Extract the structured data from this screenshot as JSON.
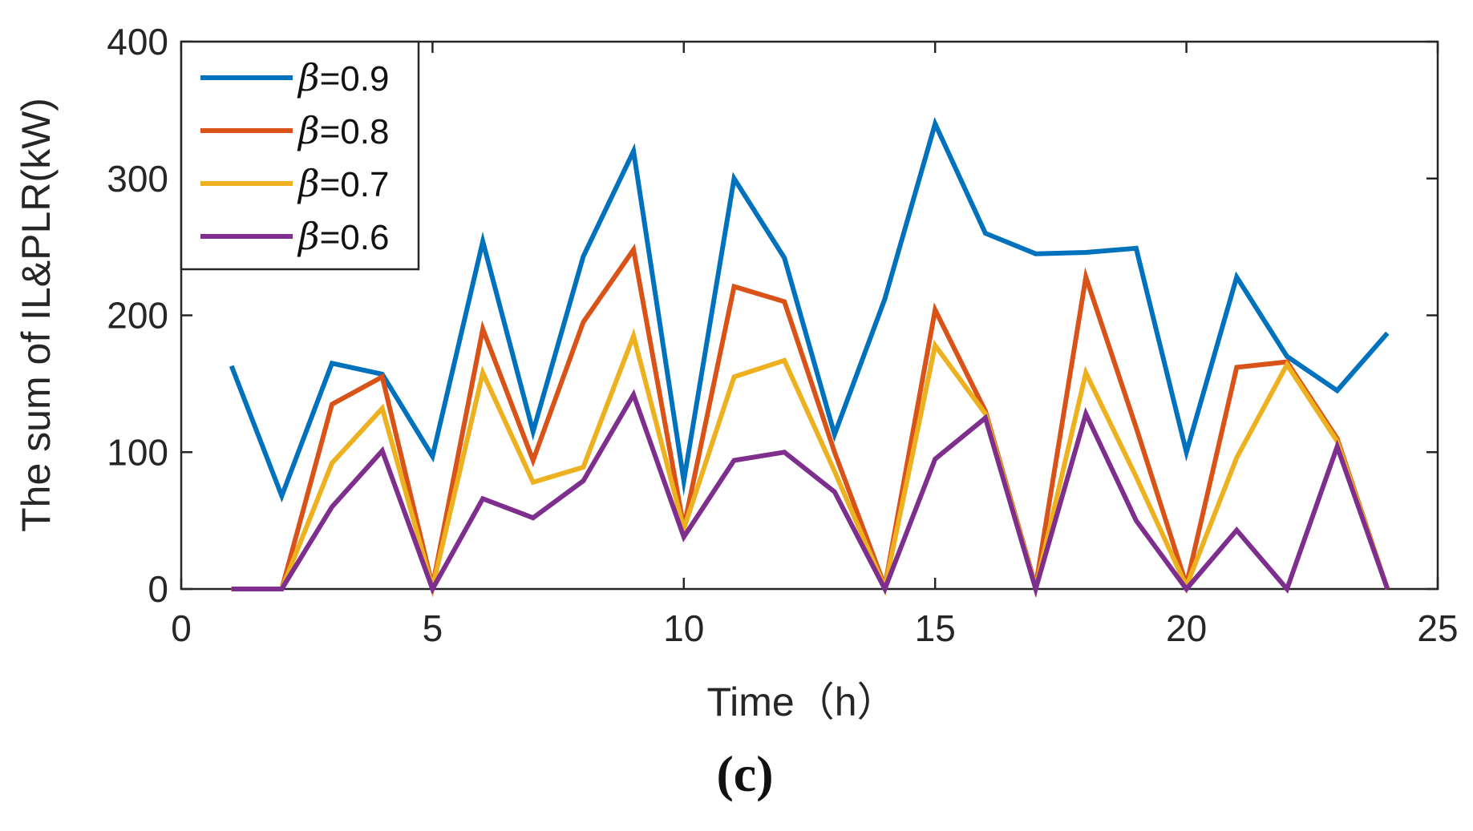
{
  "chart_data": {
    "type": "line",
    "title": "",
    "caption": "(c)",
    "xlabel": "Time（h）",
    "ylabel": "The sum of IL&PLR(kW)",
    "xlim": [
      0,
      25
    ],
    "ylim": [
      0,
      400
    ],
    "xticks": [
      "0",
      "5",
      "10",
      "15",
      "20",
      "25"
    ],
    "yticks": [
      "0",
      "100",
      "200",
      "300",
      "400"
    ],
    "grid": false,
    "legend_position": "top-left",
    "x": [
      1,
      2,
      3,
      4,
      5,
      6,
      7,
      8,
      9,
      10,
      11,
      12,
      13,
      14,
      15,
      16,
      17,
      18,
      19,
      20,
      21,
      22,
      23,
      24
    ],
    "series": [
      {
        "name": "β=0.9",
        "symbol": "β",
        "value_label": "=0.9",
        "color": "#0072BD",
        "values": [
          163,
          68,
          165,
          157,
          97,
          254,
          115,
          243,
          320,
          79,
          300,
          242,
          113,
          212,
          340,
          260,
          245,
          246,
          249,
          100,
          228,
          170,
          145,
          187
        ]
      },
      {
        "name": "β=0.8",
        "symbol": "β",
        "value_label": "=0.8",
        "color": "#D95319",
        "values": [
          0,
          0,
          135,
          155,
          2,
          190,
          94,
          195,
          248,
          45,
          221,
          210,
          100,
          2,
          204,
          130,
          2,
          228,
          118,
          3,
          162,
          166,
          110,
          0
        ]
      },
      {
        "name": "β=0.7",
        "symbol": "β",
        "value_label": "=0.7",
        "color": "#EDB120",
        "values": [
          0,
          0,
          92,
          132,
          1,
          158,
          78,
          89,
          185,
          44,
          155,
          167,
          86,
          1,
          178,
          128,
          1,
          158,
          82,
          2,
          96,
          164,
          108,
          0
        ]
      },
      {
        "name": "β=0.6",
        "symbol": "β",
        "value_label": "=0.6",
        "color": "#7E2F8E",
        "values": [
          0,
          0,
          60,
          101,
          0,
          66,
          52,
          79,
          142,
          38,
          94,
          100,
          71,
          0,
          95,
          125,
          0,
          128,
          50,
          0,
          43,
          0,
          104,
          0
        ]
      }
    ]
  }
}
